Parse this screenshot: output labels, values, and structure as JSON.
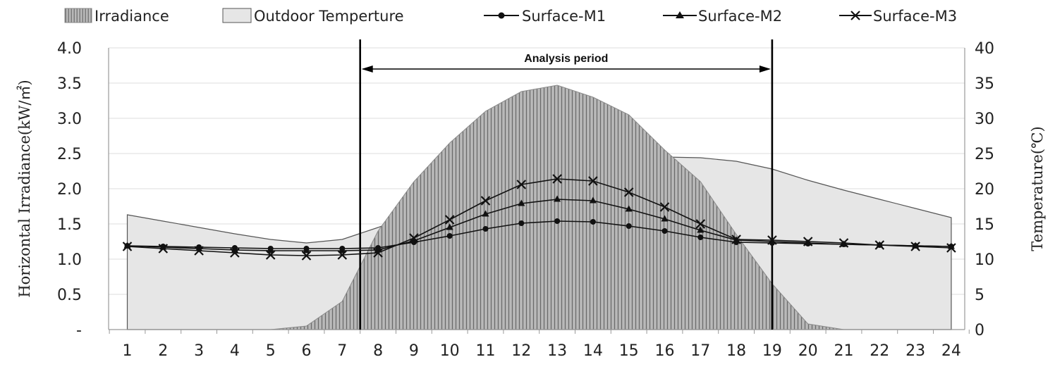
{
  "chart_data": {
    "type": "area",
    "categories": [
      "1",
      "2",
      "3",
      "4",
      "5",
      "6",
      "7",
      "8",
      "9",
      "10",
      "11",
      "12",
      "13",
      "14",
      "15",
      "16",
      "17",
      "18",
      "19",
      "20",
      "21",
      "22",
      "23",
      "24"
    ],
    "series": [
      {
        "name": "Irradiance",
        "kind": "area",
        "axis": "left",
        "pattern": "vertical-hatch",
        "values": [
          0,
          0,
          0,
          0,
          0,
          0.05,
          0.4,
          1.4,
          2.1,
          2.65,
          3.1,
          3.38,
          3.47,
          3.3,
          3.05,
          2.55,
          2.1,
          1.35,
          0.65,
          0.08,
          0,
          0,
          0,
          0
        ]
      },
      {
        "name": "Outdoor Temperture",
        "kind": "area",
        "axis": "right",
        "values": [
          16.3,
          15.4,
          14.5,
          13.6,
          12.8,
          12.3,
          12.8,
          14.5,
          16.5,
          18.4,
          20.1,
          21.8,
          23.0,
          23.8,
          24.3,
          24.5,
          24.4,
          23.9,
          22.8,
          21.2,
          19.8,
          18.5,
          17.2,
          15.9
        ]
      },
      {
        "name": "Surface-M1",
        "kind": "line",
        "axis": "right",
        "marker": "circle",
        "values": [
          11.9,
          11.8,
          11.7,
          11.6,
          11.5,
          11.5,
          11.5,
          11.6,
          12.4,
          13.3,
          14.3,
          15.1,
          15.4,
          15.3,
          14.7,
          14.0,
          13.1,
          12.4,
          12.3,
          12.2,
          12.1,
          12.0,
          11.9,
          11.8
        ]
      },
      {
        "name": "Surface-M2",
        "kind": "line",
        "axis": "right",
        "marker": "triangle",
        "values": [
          11.9,
          11.7,
          11.5,
          11.3,
          11.2,
          11.2,
          11.2,
          11.3,
          12.6,
          14.5,
          16.4,
          17.9,
          18.5,
          18.3,
          17.1,
          15.7,
          14.1,
          12.7,
          12.5,
          12.3,
          12.1,
          12.0,
          11.9,
          11.8
        ]
      },
      {
        "name": "Surface-M3",
        "kind": "line",
        "axis": "right",
        "marker": "x",
        "values": [
          11.8,
          11.5,
          11.2,
          10.9,
          10.6,
          10.5,
          10.6,
          10.9,
          13.0,
          15.6,
          18.3,
          20.6,
          21.4,
          21.1,
          19.5,
          17.4,
          15.0,
          12.8,
          12.7,
          12.5,
          12.3,
          12.0,
          11.8,
          11.6
        ]
      }
    ],
    "ylabel": "Horizontal Irradiance(kW/㎡)",
    "ylabel_right": "Temperature(℃)",
    "ylim": [
      0,
      4.0
    ],
    "ylim_right": [
      0,
      40
    ],
    "yticks": [
      "-",
      "0.5",
      "1.0",
      "1.5",
      "2.0",
      "2.5",
      "3.0",
      "3.5",
      "4.0"
    ],
    "yticks_right": [
      "0",
      "5",
      "10",
      "15",
      "20",
      "25",
      "30",
      "35",
      "40"
    ],
    "grid": true,
    "legend_position": "top",
    "annotation": {
      "text": "Analysis period",
      "start_x": 7.5,
      "end_x": 19
    },
    "colors": {
      "irradiance_fill": "#b8b8b8",
      "irradiance_hatch": "#666666",
      "temperature_fill": "#e6e6e6",
      "temperature_line": "#555555",
      "surface_lines": "#111111",
      "grid": "#dddddd",
      "axis": "#999999"
    }
  }
}
